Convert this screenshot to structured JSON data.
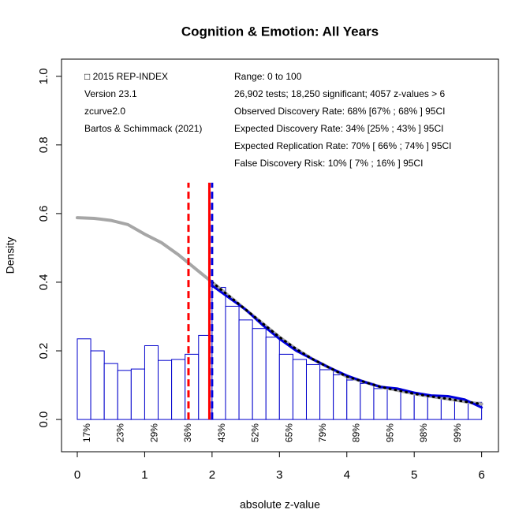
{
  "chart_data": {
    "type": "histogram",
    "title": "Cognition & Emotion: All Years",
    "xlabel": "absolute z-value",
    "ylabel": "Density",
    "bins": [
      0,
      0.2,
      0.4,
      0.6,
      0.8,
      1.0,
      1.2,
      1.4,
      1.6,
      1.8,
      2.0,
      2.2,
      2.4,
      2.6,
      2.8,
      3.0,
      3.2,
      3.4,
      3.6,
      3.8,
      4.0,
      4.2,
      4.4,
      4.6,
      4.8,
      5.0,
      5.2,
      5.4,
      5.6,
      5.8,
      6.0
    ],
    "values": [
      0.235,
      0.2,
      0.163,
      0.143,
      0.147,
      0.215,
      0.172,
      0.175,
      0.19,
      0.245,
      0.385,
      0.33,
      0.29,
      0.265,
      0.24,
      0.19,
      0.175,
      0.16,
      0.145,
      0.13,
      0.115,
      0.105,
      0.09,
      0.09,
      0.08,
      0.072,
      0.07,
      0.06,
      0.055,
      0.05
    ],
    "color": "#0000cc",
    "lines": [
      {
        "color": "#a6a6a6",
        "style": "solid",
        "width": 4,
        "x": [
          0,
          0.25,
          0.5,
          0.75,
          1,
          1.25,
          1.5,
          1.75,
          2,
          2.25,
          2.5,
          2.75,
          3,
          3.25,
          3.5,
          3.75,
          4,
          4.25,
          4.5,
          4.75,
          5,
          5.25,
          5.5,
          5.75,
          6
        ],
        "values": [
          0.588,
          0.586,
          0.58,
          0.568,
          0.54,
          0.515,
          0.48,
          0.44,
          0.4,
          0.36,
          0.32,
          0.28,
          0.24,
          0.205,
          0.175,
          0.15,
          0.125,
          0.11,
          0.095,
          0.085,
          0.075,
          0.067,
          0.06,
          0.052,
          0.045
        ]
      },
      {
        "color": "#0000dd",
        "style": "solid",
        "width": 3,
        "x": [
          2,
          2.25,
          2.5,
          2.75,
          3,
          3.25,
          3.5,
          3.75,
          4,
          4.25,
          4.5,
          4.75,
          5,
          5.25,
          5.5,
          5.75,
          6
        ],
        "values": [
          0.39,
          0.355,
          0.32,
          0.275,
          0.235,
          0.2,
          0.175,
          0.15,
          0.128,
          0.11,
          0.095,
          0.09,
          0.078,
          0.07,
          0.068,
          0.058,
          0.035
        ]
      },
      {
        "color": "#000000",
        "style": "dotted",
        "width": 3,
        "x": [
          2,
          2.25,
          2.5,
          2.75,
          3,
          3.25,
          3.5,
          3.75,
          4,
          4.25,
          4.5,
          4.75,
          5,
          5.25,
          5.5,
          5.75,
          6
        ],
        "values": [
          0.4,
          0.36,
          0.32,
          0.28,
          0.24,
          0.205,
          0.175,
          0.15,
          0.125,
          0.11,
          0.095,
          0.085,
          0.075,
          0.067,
          0.06,
          0.052,
          0.045
        ]
      }
    ],
    "vlines": [
      {
        "x": 1.65,
        "top": 0.69,
        "color": "#ff0000",
        "style": "dashed"
      },
      {
        "x": 1.96,
        "top": 0.69,
        "color": "#ff0000",
        "style": "solid"
      },
      {
        "x": 2.0,
        "top": 0.69,
        "color": "#0000dd",
        "style": "dashed"
      }
    ],
    "power_labels": {
      "x": [
        0.15,
        0.65,
        1.15,
        1.65,
        2.15,
        2.65,
        3.15,
        3.65,
        4.15,
        4.65,
        5.15,
        5.65
      ],
      "labels": [
        "17%",
        "23%",
        "29%",
        "36%",
        "43%",
        "52%",
        "65%",
        "79%",
        "89%",
        "95%",
        "98%",
        "99%"
      ]
    },
    "annotations_left": [
      "□ 2015 REP-INDEX",
      "Version 23.1",
      "zcurve2.0",
      "Bartos & Schimmack (2021)"
    ],
    "annotations_right": [
      "Range: 0 to 100",
      "26,902 tests; 18,250 significant; 4057 z-values > 6",
      "Observed Discovery Rate: 68% [67% ; 68% ] 95CI",
      "Expected Discovery Rate: 34% [25% ; 43% ] 95CI",
      "Expected Replication Rate: 70% [ 66% ; 74% ] 95CI",
      "False Discovery Risk: 10% [ 7% ; 16% ] 95CI"
    ],
    "xlim": [
      -0.234,
      6.25
    ],
    "ylim": [
      -0.094,
      1.05
    ],
    "xticks": [
      0,
      1,
      2,
      3,
      4,
      5,
      6
    ],
    "yticks": [
      {
        "value": 0,
        "label": "0.0"
      },
      0.2,
      0.4,
      0.6,
      0.8,
      {
        "value": 1,
        "label": "1.0"
      }
    ]
  }
}
